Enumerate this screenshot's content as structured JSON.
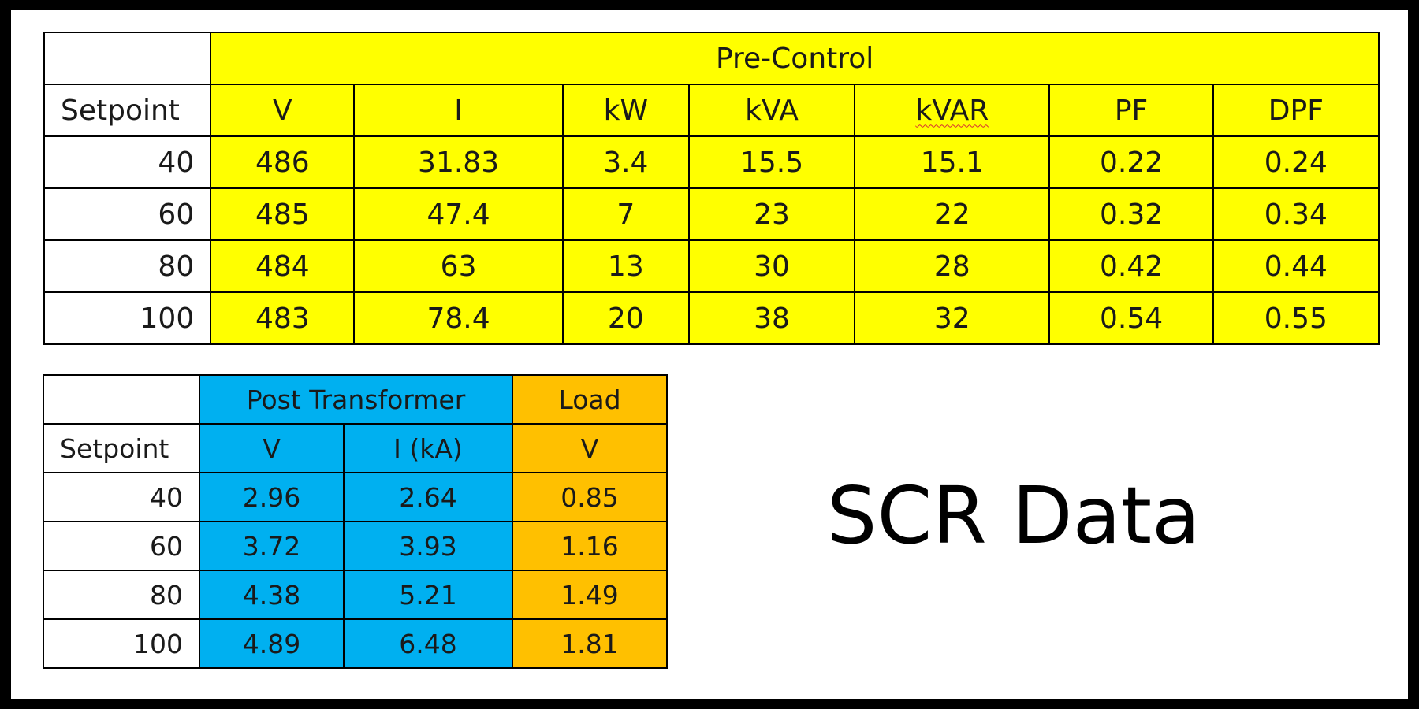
{
  "pre_control": {
    "group_header": "Pre-Control",
    "setpoint_header": "Setpoint",
    "columns": [
      "V",
      "I",
      "kW",
      "kVA",
      "kVAR",
      "PF",
      "DPF"
    ],
    "rows": [
      {
        "setpoint": "40",
        "values": [
          "486",
          "31.83",
          "3.4",
          "15.5",
          "15.1",
          "0.22",
          "0.24"
        ]
      },
      {
        "setpoint": "60",
        "values": [
          "485",
          "47.4",
          "7",
          "23",
          "22",
          "0.32",
          "0.34"
        ]
      },
      {
        "setpoint": "80",
        "values": [
          "484",
          "63",
          "13",
          "30",
          "28",
          "0.42",
          "0.44"
        ]
      },
      {
        "setpoint": "100",
        "values": [
          "483",
          "78.4",
          "20",
          "38",
          "32",
          "0.54",
          "0.55"
        ]
      }
    ]
  },
  "post_transformer": {
    "group_header": "Post Transformer",
    "load_header": "Load",
    "setpoint_header": "Setpoint",
    "columns": [
      "V",
      "I (kA)",
      "V"
    ],
    "rows": [
      {
        "setpoint": "40",
        "values": [
          "2.96",
          "2.64",
          "0.85"
        ]
      },
      {
        "setpoint": "60",
        "values": [
          "3.72",
          "3.93",
          "1.16"
        ]
      },
      {
        "setpoint": "80",
        "values": [
          "4.38",
          "5.21",
          "1.49"
        ]
      },
      {
        "setpoint": "100",
        "values": [
          "4.89",
          "6.48",
          "1.81"
        ]
      }
    ]
  },
  "title": "SCR Data",
  "colors": {
    "pre_control_fill": "#ffff00",
    "post_transformer_fill": "#00b0f0",
    "load_fill": "#ffc000",
    "frame": "#000000"
  }
}
